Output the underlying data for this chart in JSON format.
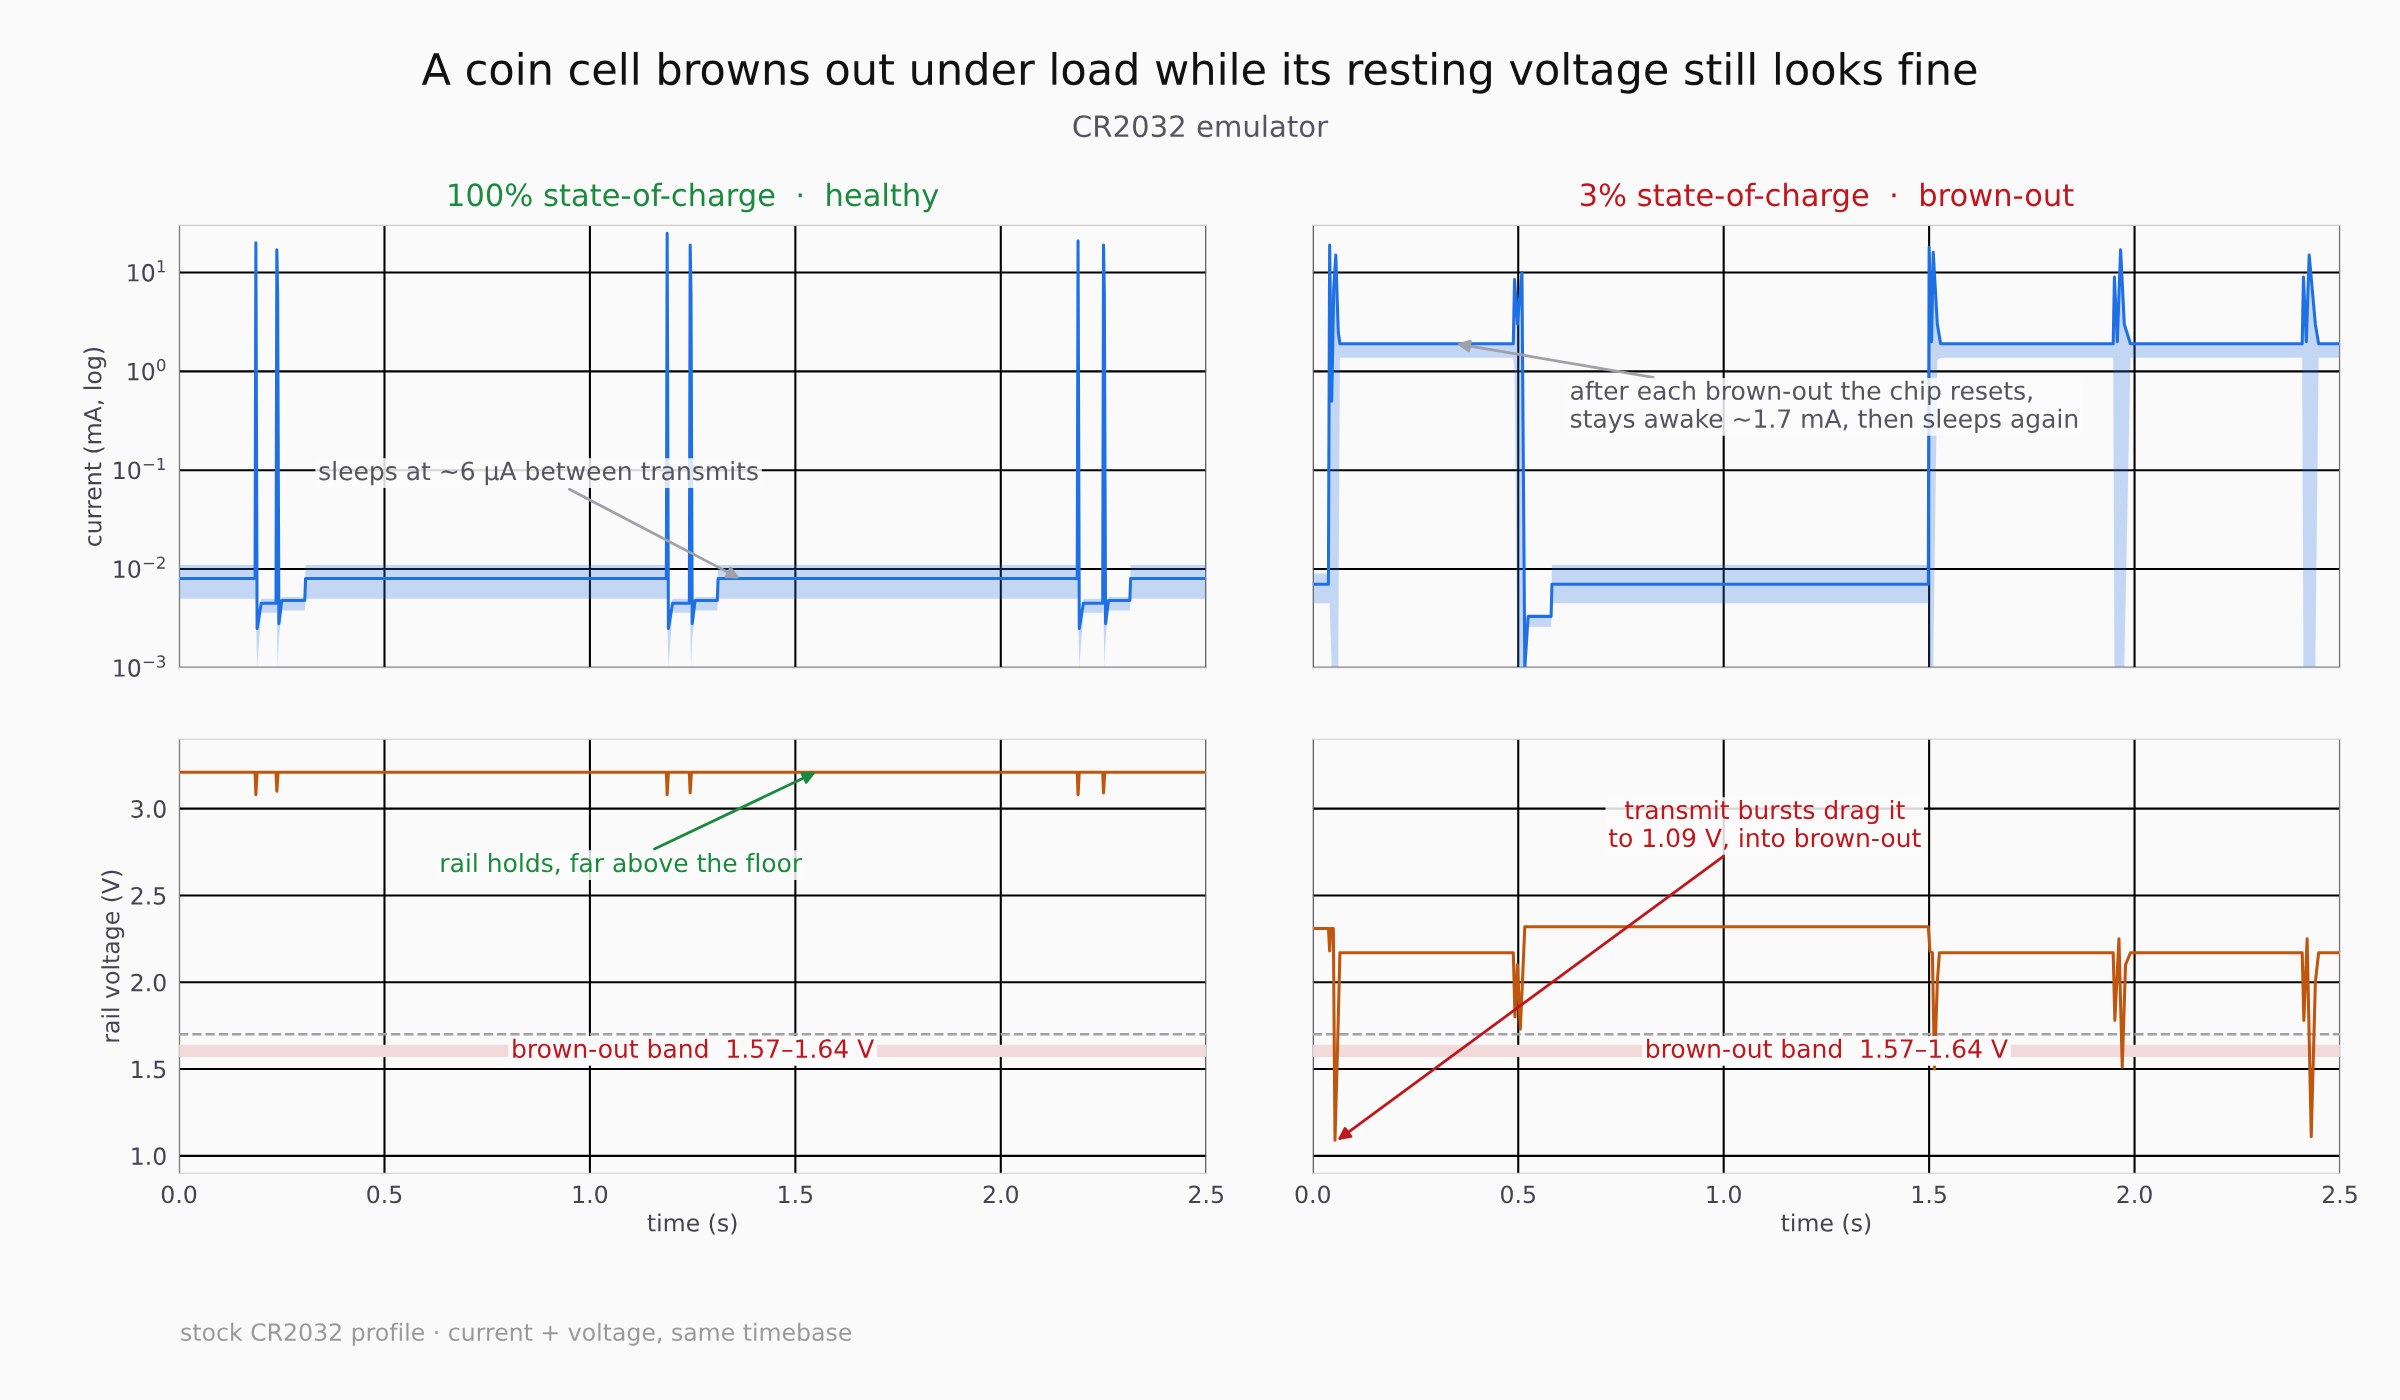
{
  "chart_data": [
    {
      "type": "line",
      "title": "100% state-of-charge  ·  healthy",
      "ylabel": "current (mA, log)",
      "log": "y",
      "grid": true,
      "tick_labels": "y",
      "marker": "none",
      "line_style": "solid",
      "xlim": [
        0,
        2.5
      ],
      "xticks": [
        {
          "value": 0,
          "label": null
        },
        {
          "value": 0.5,
          "label": null
        },
        {
          "value": 1,
          "label": null
        },
        {
          "value": 1.5,
          "label": null
        },
        {
          "value": 2,
          "label": null
        },
        {
          "value": 2.5,
          "label": null
        }
      ],
      "ylim": [
        0.001,
        30
      ],
      "yticks": [
        {
          "value": 0.001,
          "label": "10$^{−3}$"
        },
        {
          "value": 0.01,
          "label": "10$^{−2}$"
        },
        {
          "value": 0.1,
          "label": "10$^{−1}$"
        },
        {
          "value": 1,
          "label": "10$^{0}$"
        },
        {
          "value": 10,
          "label": "10$^{1}$"
        }
      ],
      "annotations": [
        "A coin cell browns out under load while its resting voltage still looks fine",
        "CR2032 emulator",
        "stock CR2032 profile · current + voltage, same timebase",
        {
          "text": "sleeps at ~6 µA between transmits",
          "x": 1.365,
          "y": 0.008
        }
      ],
      "series": [
        {
          "color": "#1f6fe5",
          "x": [
            0,
            0.185,
            0.187,
            0.19,
            0.2,
            0.236,
            0.238,
            0.24,
            0.243,
            0.25,
            0.306,
            0.308,
            1.186,
            1.188,
            1.191,
            1.201,
            1.242,
            1.244,
            1.246,
            1.249,
            1.256,
            1.31,
            1.312,
            2.186,
            2.188,
            2.191,
            2.201,
            2.248,
            2.25,
            2.252,
            2.255,
            2.262,
            2.314,
            2.316,
            2.5
          ],
          "values": [
            0.008,
            0.008,
            20,
            0.0025,
            0.0045,
            0.0045,
            17,
            6,
            0.0028,
            0.0048,
            0.0048,
            0.008,
            0.008,
            25,
            0.0025,
            0.0045,
            0.0045,
            19,
            6,
            0.0028,
            0.0048,
            0.0048,
            0.008,
            0.008,
            21,
            0.0025,
            0.0045,
            0.0045,
            19,
            6,
            0.0028,
            0.0048,
            0.0048,
            0.008,
            0.008
          ],
          "lower": [
            0.005,
            0.005,
            0.005,
            0.001,
            0.0036,
            0.0036,
            0.0036,
            0.001,
            0.002,
            0.0038,
            0.0038,
            0.005,
            0.005,
            0.005,
            0.001,
            0.0036,
            0.0036,
            0.0036,
            0.001,
            0.002,
            0.0038,
            0.0038,
            0.005,
            0.005,
            0.005,
            0.001,
            0.0036,
            0.0036,
            0.0036,
            0.001,
            0.002,
            0.0038,
            0.0038,
            0.005,
            0.005
          ],
          "upper": [
            0.011,
            0.011,
            20,
            0.0025,
            0.005,
            0.005,
            17,
            6,
            0.0028,
            0.0052,
            0.0052,
            0.011,
            0.011,
            25,
            0.0025,
            0.005,
            0.005,
            19,
            6,
            0.0028,
            0.0052,
            0.0052,
            0.011,
            0.011,
            21,
            0.0025,
            0.005,
            0.005,
            19,
            6,
            0.0028,
            0.0052,
            0.0052,
            0.011,
            0.011
          ]
        }
      ]
    },
    {
      "type": "line",
      "title": "3% state-of-charge  ·  brown-out",
      "log": "y",
      "grid": true,
      "tick_labels": false,
      "marker": "none",
      "line_style": "solid",
      "xlim": [
        0,
        2.5
      ],
      "xticks": [
        {
          "value": 0,
          "label": null
        },
        {
          "value": 0.5,
          "label": null
        },
        {
          "value": 1,
          "label": null
        },
        {
          "value": 1.5,
          "label": null
        },
        {
          "value": 2,
          "label": null
        },
        {
          "value": 2.5,
          "label": null
        }
      ],
      "ylim": [
        0.001,
        30
      ],
      "yticks": [
        {
          "value": 0.001,
          "label": null
        },
        {
          "value": 0.01,
          "label": null
        },
        {
          "value": 0.1,
          "label": null
        },
        {
          "value": 1,
          "label": null
        },
        {
          "value": 10,
          "label": null
        }
      ],
      "annotations": [
        {
          "text": "after each brown-out the chip resets,\nstays awake ~1.7 mA, then sleeps again",
          "x": 0.35,
          "y": 1.9
        }
      ],
      "series": [
        {
          "color": "#1f6fe5",
          "x": [
            0,
            0.038,
            0.041,
            0.046,
            0.051,
            0.056,
            0.062,
            0.066,
            0.488,
            0.491,
            0.498,
            0.509,
            0.516,
            0.524,
            0.58,
            0.582,
            1.498,
            1.5,
            1.506,
            1.51,
            1.52,
            1.528,
            1.948,
            1.951,
            1.958,
            1.966,
            1.975,
            1.99,
            2.408,
            2.411,
            2.418,
            2.425,
            2.44,
            2.448,
            2.5
          ],
          "values": [
            0.007,
            0.007,
            19,
            0.5,
            7,
            15,
            2.5,
            1.9,
            1.9,
            8.5,
            3,
            10,
            0.001,
            0.0033,
            0.0033,
            0.007,
            0.007,
            18,
            2,
            16,
            3,
            1.9,
            1.9,
            9,
            2,
            17,
            3,
            1.9,
            1.9,
            9,
            2,
            15,
            3,
            1.9,
            1.9
          ],
          "lower": [
            0.0045,
            0.0045,
            0.0045,
            0.001,
            0.001,
            0.001,
            0.001,
            1.37,
            1.37,
            1,
            0.001,
            0.001,
            0.001,
            0.0026,
            0.0026,
            0.0045,
            0.0045,
            0.001,
            0.001,
            0.001,
            1.3,
            1.37,
            1.37,
            0.001,
            0.001,
            0.001,
            0.001,
            1.37,
            1.37,
            0.001,
            0.001,
            0.001,
            0.001,
            1.37,
            1.37
          ],
          "upper": [
            0.009,
            0.009,
            19,
            0.5,
            7,
            15,
            2.5,
            1.9,
            1.9,
            8.5,
            3,
            10,
            0.001,
            0.0035,
            0.0035,
            0.011,
            0.011,
            18,
            2,
            16,
            3,
            1.9,
            1.9,
            9,
            2,
            17,
            3,
            1.9,
            1.9,
            9,
            2,
            15,
            3,
            1.9,
            1.9
          ]
        }
      ]
    },
    {
      "type": "line",
      "xlabel": "time (s)",
      "ylabel": "rail voltage (V)",
      "grid": true,
      "marker": "none",
      "line_style": "solid",
      "xlim": [
        0,
        2.5
      ],
      "xticks": [
        {
          "value": 0,
          "label": "0.0"
        },
        {
          "value": 0.5,
          "label": "0.5"
        },
        {
          "value": 1,
          "label": "1.0"
        },
        {
          "value": 1.5,
          "label": "1.5"
        },
        {
          "value": 2,
          "label": "2.0"
        },
        {
          "value": 2.5,
          "label": "2.5"
        }
      ],
      "ylim": [
        0.9,
        3.4
      ],
      "yticks": [
        {
          "value": 1,
          "label": "1.0"
        },
        {
          "value": 1.5,
          "label": "1.5"
        },
        {
          "value": 2,
          "label": "2.0"
        },
        {
          "value": 2.5,
          "label": "2.5"
        },
        {
          "value": 3,
          "label": "3.0"
        }
      ],
      "ref_lines": [
        {
          "axis": "y",
          "value": 1.7,
          "color": "#a0a0a8",
          "line_style": "dashed"
        }
      ],
      "bands": [
        {
          "axis": "y",
          "from": 1.57,
          "to": 1.64,
          "label": "brown-out band  1.57–1.64 V",
          "color": "#f2d9da"
        }
      ],
      "annotations": [
        {
          "text": "rail holds, far above the floor",
          "x": 1.55,
          "y": 3.21
        }
      ],
      "series": [
        {
          "color": "#c0560e",
          "x": [
            0,
            0.185,
            0.187,
            0.19,
            0.236,
            0.238,
            0.241,
            1.186,
            1.188,
            1.191,
            1.242,
            1.244,
            1.247,
            2.186,
            2.188,
            2.191,
            2.248,
            2.25,
            2.253,
            2.5
          ],
          "values": [
            3.21,
            3.21,
            3.08,
            3.21,
            3.21,
            3.1,
            3.21,
            3.21,
            3.08,
            3.21,
            3.21,
            3.09,
            3.21,
            3.21,
            3.08,
            3.21,
            3.21,
            3.09,
            3.21,
            3.21
          ]
        }
      ]
    },
    {
      "type": "line",
      "xlabel": "time (s)",
      "grid": true,
      "tick_labels": "x",
      "marker": "none",
      "line_style": "solid",
      "xlim": [
        0,
        2.5
      ],
      "xticks": [
        {
          "value": 0,
          "label": "0.0"
        },
        {
          "value": 0.5,
          "label": "0.5"
        },
        {
          "value": 1,
          "label": "1.0"
        },
        {
          "value": 1.5,
          "label": "1.5"
        },
        {
          "value": 2,
          "label": "2.0"
        },
        {
          "value": 2.5,
          "label": "2.5"
        }
      ],
      "ylim": [
        0.9,
        3.4
      ],
      "yticks": [
        {
          "value": 1,
          "label": null
        },
        {
          "value": 1.5,
          "label": null
        },
        {
          "value": 2,
          "label": null
        },
        {
          "value": 2.5,
          "label": null
        },
        {
          "value": 3,
          "label": null
        }
      ],
      "ref_lines": [
        {
          "axis": "y",
          "value": 1.7,
          "color": "#a0a0a8",
          "line_style": "dashed"
        }
      ],
      "bands": [
        {
          "axis": "y",
          "from": 1.57,
          "to": 1.64,
          "label": "brown-out band  1.57–1.64 V",
          "color": "#f2d9da"
        }
      ],
      "annotations": [
        {
          "text": "transmit bursts drag it\nto 1.09 V, into brown-out",
          "x": 0.06,
          "y": 1.09
        }
      ],
      "series": [
        {
          "color": "#c0560e",
          "x": [
            0,
            0.038,
            0.041,
            0.044,
            0.05,
            0.054,
            0.06,
            0.066,
            0.488,
            0.492,
            0.498,
            0.505,
            0.512,
            0.516,
            1.498,
            1.502,
            1.508,
            1.513,
            1.52,
            1.525,
            1.948,
            1.952,
            1.962,
            1.97,
            1.978,
            1.99,
            2.408,
            2.412,
            2.42,
            2.43,
            2.44,
            2.448,
            2.5
          ],
          "values": [
            2.31,
            2.31,
            2.18,
            2.31,
            2.31,
            1.09,
            1.6,
            2.17,
            2.17,
            1.8,
            2.1,
            1.73,
            2.1,
            2.32,
            2.32,
            2.18,
            2.17,
            1.5,
            2.0,
            2.17,
            2.17,
            1.78,
            2.25,
            1.51,
            2.1,
            2.17,
            2.17,
            1.78,
            2.25,
            1.11,
            2.0,
            2.17,
            2.17
          ]
        }
      ]
    }
  ]
}
